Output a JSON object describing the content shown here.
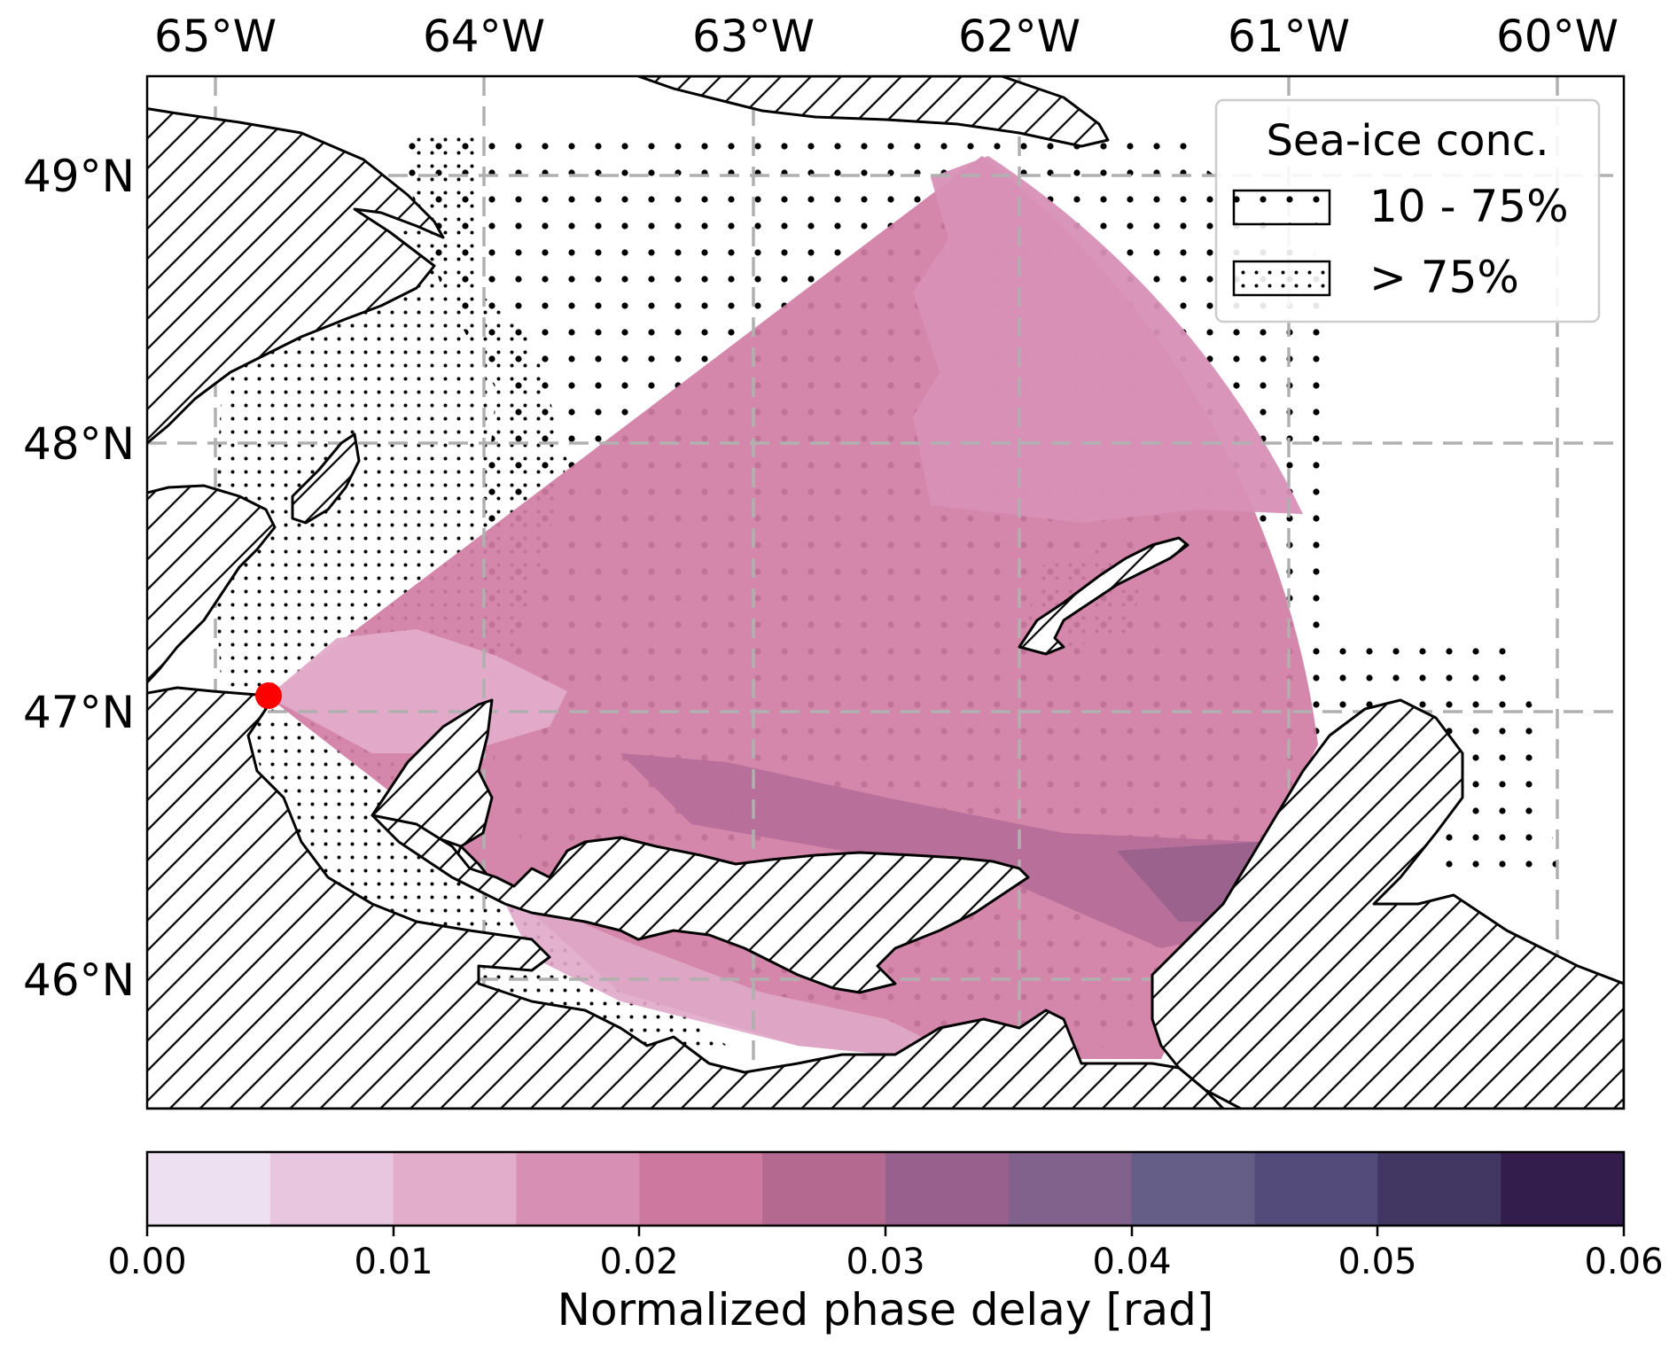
{
  "map": {
    "lon_ticks": [
      "65°W",
      "64°W",
      "63°W",
      "62°W",
      "61°W",
      "60°W"
    ],
    "lat_ticks": [
      "49°N",
      "48°N",
      "47°N",
      "46°N"
    ],
    "gridlines": true,
    "gridline_style": "dashed"
  },
  "legend": {
    "title": "Sea-ice conc.",
    "placement": "top-right",
    "entries": [
      {
        "label": "10 - 75%",
        "pattern": "sparse-dots"
      },
      {
        "label": "> 75%",
        "pattern": "dense-dots"
      }
    ]
  },
  "colorbar": {
    "label": "Normalized phase delay [rad]",
    "tick_labels": [
      "0.00",
      "0.01",
      "0.02",
      "0.03",
      "0.04",
      "0.05",
      "0.06"
    ],
    "range": [
      0,
      0.06
    ],
    "colors": [
      "#ede0f1",
      "#e9c6df",
      "#e2adca",
      "#d790b4",
      "#cd789f",
      "#b46990",
      "#98618d",
      "#80628c",
      "#655f88",
      "#534c7a",
      "#423662",
      "#331d4c"
    ]
  },
  "colors": {
    "land_outline": "#000000",
    "source_marker": "#ff0000",
    "footprint_main": "#d07ca4",
    "footprint_light": "#d890b6",
    "footprint_dark": "#b66e98"
  }
}
